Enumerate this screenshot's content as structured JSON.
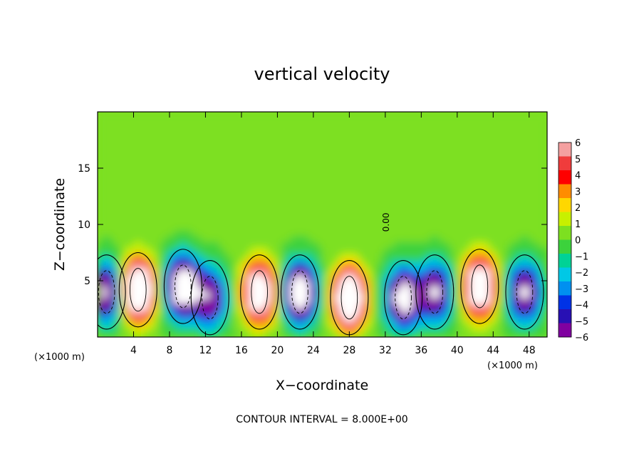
{
  "chart_data": {
    "type": "heatmap",
    "title": "vertical velocity",
    "xlabel": "X−coordinate",
    "ylabel": "Z−coordinate",
    "x_unit_left": "(×1000 m)",
    "x_unit_right": "(×1000 m)",
    "footer": "CONTOUR INTERVAL = 8.000E+00",
    "contour_label": "0.00",
    "xlim": [
      0,
      50
    ],
    "ylim": [
      0,
      20
    ],
    "x_ticks": [
      4,
      8,
      12,
      16,
      20,
      24,
      28,
      32,
      36,
      40,
      44,
      48
    ],
    "x_tick_labels": [
      "4",
      "8",
      "12",
      "16",
      "20",
      "24",
      "28",
      "32",
      "36",
      "40",
      "44",
      "48"
    ],
    "y_ticks": [
      5,
      10,
      15
    ],
    "y_tick_labels": [
      "5",
      "10",
      "15"
    ],
    "colorbar": {
      "min": -6,
      "max": 6,
      "labels": [
        "6",
        "5",
        "4",
        "3",
        "2",
        "1",
        "0",
        "−1",
        "−2",
        "−3",
        "−4",
        "−5",
        "−6"
      ],
      "colors": [
        "#f4a0a0",
        "#f03c3c",
        "#ff0000",
        "#ff8c00",
        "#ffd700",
        "#c8f000",
        "#7de020",
        "#3cd23c",
        "#00d296",
        "#00c8e6",
        "#0090f0",
        "#0032e6",
        "#2810b4",
        "#8000a0"
      ]
    },
    "background_value": 0.3,
    "features": [
      {
        "x": 1.0,
        "z": 4.0,
        "sign": "down",
        "amp": 8
      },
      {
        "x": 4.5,
        "z": 4.2,
        "sign": "up",
        "amp": 14
      },
      {
        "x": 9.5,
        "z": 4.5,
        "sign": "down",
        "amp": 12
      },
      {
        "x": 12.5,
        "z": 3.5,
        "sign": "down",
        "amp": 7
      },
      {
        "x": 18.0,
        "z": 4.0,
        "sign": "up",
        "amp": 12
      },
      {
        "x": 22.5,
        "z": 4.0,
        "sign": "down",
        "amp": 11
      },
      {
        "x": 28.0,
        "z": 3.5,
        "sign": "up",
        "amp": 14
      },
      {
        "x": 34.0,
        "z": 3.5,
        "sign": "down",
        "amp": 10
      },
      {
        "x": 37.5,
        "z": 4.0,
        "sign": "down",
        "amp": 8
      },
      {
        "x": 42.5,
        "z": 4.5,
        "sign": "up",
        "amp": 12
      },
      {
        "x": 47.5,
        "z": 4.0,
        "sign": "down",
        "amp": 8
      }
    ]
  }
}
